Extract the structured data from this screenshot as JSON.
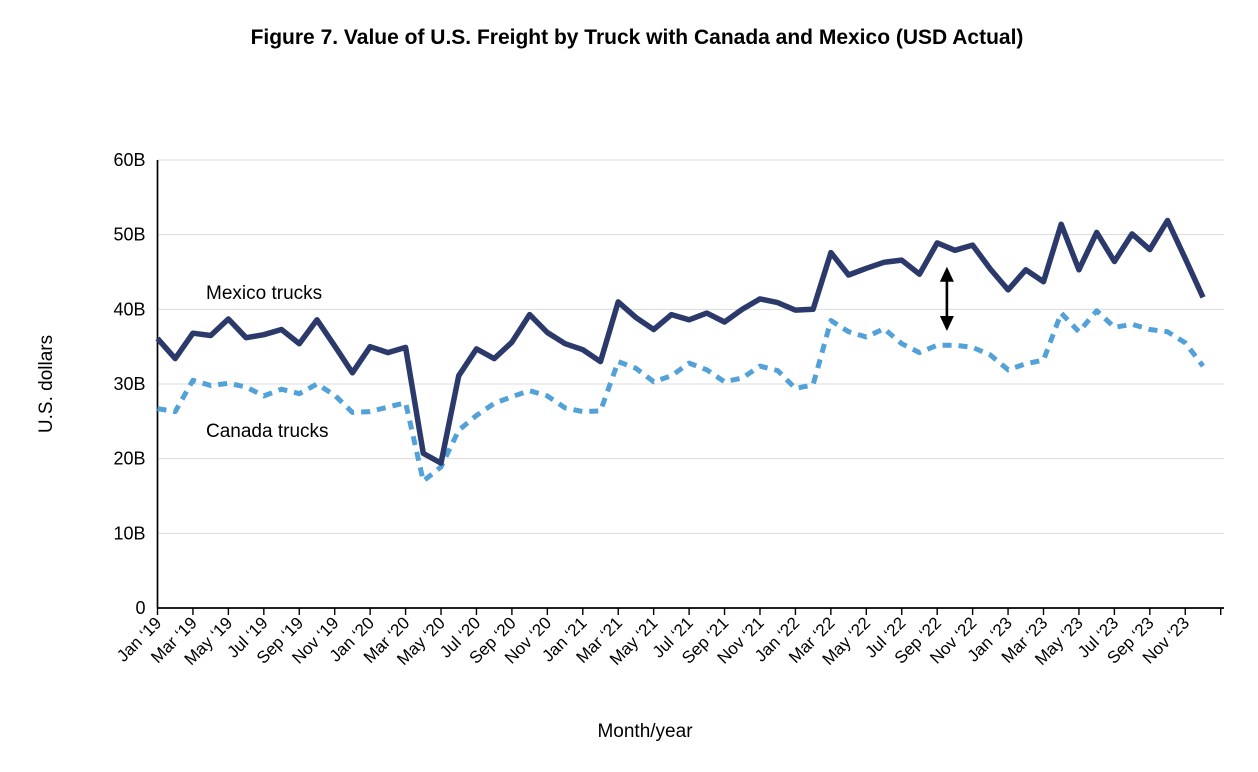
{
  "figure": {
    "title": "Figure 7.  Value of U.S. Freight by Truck with Canada and Mexico (USD Actual)",
    "title_color": "#2b3240",
    "x_axis_title": "Month/year",
    "y_axis_title": "U.S. dollars"
  },
  "colors": {
    "mexico_line": "#2b3a6b",
    "canada_line": "#52a1d8",
    "gridline": "#dcdcdc",
    "axis": "#000000",
    "arrow": "#000000"
  },
  "legend": {
    "mexico_label": "Mexico trucks",
    "canada_label": "Canada trucks"
  },
  "chart_data": {
    "type": "line",
    "title": "Figure 7.  Value of U.S. Freight by Truck with Canada and Mexico (USD Actual)",
    "xlabel": "Month/year",
    "ylabel": "U.S. dollars",
    "ylim": [
      0,
      60
    ],
    "unit": "billion USD",
    "grid": "horizontal",
    "legend_position": "inline-labels",
    "y_tick_labels": [
      "0",
      "10B",
      "20B",
      "30B",
      "40B",
      "50B",
      "60B"
    ],
    "x_tick_labels": [
      "Jan ‘19",
      "Mar ‘19",
      "May ‘19",
      "Jul ‘19",
      "Sep ‘19",
      "Nov ‘19",
      "Jan ‘20",
      "Mar ‘20",
      "May ‘20",
      "Jul ‘20",
      "Sep ‘20",
      "Nov ‘20",
      "Jan ‘21",
      "Mar ‘21",
      "May ‘21",
      "Jul ‘21",
      "Sep ‘21",
      "Nov ‘21",
      "Jan ‘22",
      "Mar ‘22",
      "May ‘22",
      "Jul ‘22",
      "Sep ‘22",
      "Nov ‘22",
      "Jan ‘23",
      "Mar ‘23",
      "May ‘23",
      "Jul ‘23",
      "Sep ‘23",
      "Nov ‘23"
    ],
    "months": [
      "Jan ‘19",
      "Feb ‘19",
      "Mar ‘19",
      "Apr ‘19",
      "May ‘19",
      "Jun ‘19",
      "Jul ‘19",
      "Aug ‘19",
      "Sep ‘19",
      "Oct ‘19",
      "Nov ‘19",
      "Dec ‘19",
      "Jan ‘20",
      "Feb ‘20",
      "Mar ‘20",
      "Apr ‘20",
      "May ‘20",
      "Jun ‘20",
      "Jul ‘20",
      "Aug ‘20",
      "Sep ‘20",
      "Oct ‘20",
      "Nov ‘20",
      "Dec ‘20",
      "Jan ‘21",
      "Feb ‘21",
      "Mar ‘21",
      "Apr ‘21",
      "May ‘21",
      "Jun ‘21",
      "Jul ‘21",
      "Aug ‘21",
      "Sep ‘21",
      "Oct ‘21",
      "Nov ‘21",
      "Dec ‘21",
      "Jan ‘22",
      "Feb ‘22",
      "Mar ‘22",
      "Apr ‘22",
      "May ‘22",
      "Jun ‘22",
      "Jul ‘22",
      "Aug ‘22",
      "Sep ‘22",
      "Oct ‘22",
      "Nov ‘22",
      "Dec ‘22",
      "Jan ‘23",
      "Feb ‘23",
      "Mar ‘23",
      "Apr ‘23",
      "May ‘23",
      "Jun ‘23",
      "Jul ‘23",
      "Aug ‘23",
      "Sep ‘23",
      "Oct ‘23",
      "Nov ‘23",
      "Dec ‘23"
    ],
    "series": [
      {
        "name": "Mexico trucks",
        "style": "solid",
        "color": "#2b3a6b",
        "values": [
          36.1,
          33.4,
          36.8,
          36.5,
          38.7,
          36.2,
          36.6,
          37.3,
          35.4,
          38.6,
          35.1,
          31.5,
          35.0,
          34.2,
          34.9,
          20.7,
          19.4,
          31.1,
          34.7,
          33.4,
          35.6,
          39.3,
          36.9,
          35.4,
          34.6,
          33.0,
          41.0,
          38.9,
          37.3,
          39.3,
          38.6,
          39.5,
          38.3,
          40.0,
          41.4,
          40.9,
          39.9,
          40.0,
          47.6,
          44.6,
          45.5,
          46.3,
          46.6,
          44.7,
          48.9,
          47.9,
          48.6,
          45.4,
          42.6,
          45.3,
          43.7,
          51.4,
          45.3,
          50.3,
          46.4,
          50.1,
          48.0,
          51.9,
          46.8,
          41.6
        ]
      },
      {
        "name": "Canada trucks",
        "style": "dashed",
        "color": "#52a1d8",
        "values": [
          26.7,
          26.3,
          30.5,
          29.8,
          30.1,
          29.6,
          28.4,
          29.3,
          28.7,
          30.0,
          28.5,
          26.2,
          26.3,
          26.9,
          27.5,
          17.0,
          18.9,
          23.8,
          25.8,
          27.4,
          28.3,
          29.1,
          28.4,
          26.8,
          26.3,
          26.4,
          33.0,
          32.1,
          30.3,
          31.1,
          32.8,
          31.9,
          30.3,
          30.8,
          32.4,
          31.8,
          29.4,
          29.9,
          38.5,
          37.0,
          36.3,
          37.4,
          35.4,
          34.2,
          35.2,
          35.2,
          34.9,
          33.9,
          31.9,
          32.7,
          33.2,
          39.5,
          37.0,
          39.8,
          37.6,
          38.0,
          37.3,
          37.0,
          35.5,
          32.4
        ]
      }
    ],
    "annotations": [
      {
        "type": "double-headed-vertical-arrow",
        "month": "Oct ‘22",
        "value_top": 45.7,
        "value_bottom": 37.1
      }
    ]
  }
}
